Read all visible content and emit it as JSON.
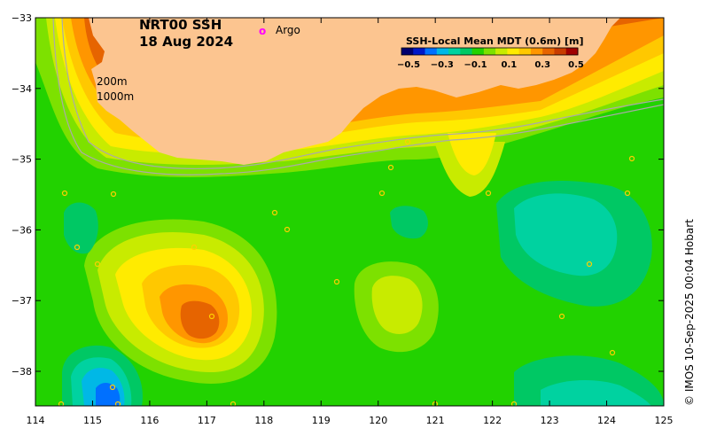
{
  "map": {
    "title_line1": "NRT00 SSH",
    "title_line2": "18 Aug 2024",
    "argo_marker": "o",
    "argo_label": "Argo",
    "isobath_200": "200m",
    "isobath_1000": "1000m",
    "credit": "© IMOS 10-Sep-2025 00:04 Hobart",
    "colorbar": {
      "title": "SSH-Local Mean MDT (0.6m) [m]",
      "tick_labels": [
        "−0.5",
        "−0.3",
        "−0.1",
        "0.1",
        "0.3",
        "0.5"
      ],
      "colors": [
        "#00006e",
        "#0018c8",
        "#0070ff",
        "#00b8e6",
        "#00d2a0",
        "#00c864",
        "#22d200",
        "#7de100",
        "#c8eb00",
        "#ffeb00",
        "#ffc800",
        "#ff9600",
        "#e66400",
        "#c83c00",
        "#a00000"
      ]
    },
    "x_axis": {
      "tick_labels": [
        "114",
        "115",
        "116",
        "117",
        "118",
        "119",
        "120",
        "121",
        "122",
        "123",
        "124",
        "125"
      ]
    },
    "y_axis": {
      "tick_labels": [
        "−33",
        "−34",
        "−35",
        "−36",
        "−37",
        "−38"
      ]
    },
    "colors": {
      "land": "#fcc590",
      "argo": "#ff00ff",
      "isobath": "#aaaaaa"
    }
  }
}
